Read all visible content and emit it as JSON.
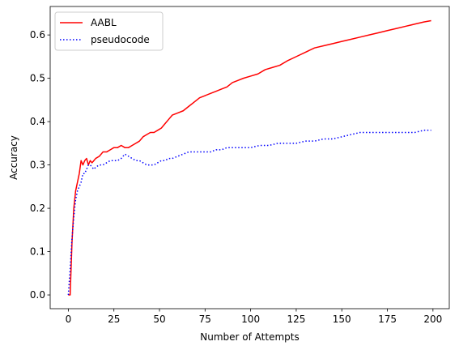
{
  "chart_data": {
    "type": "line",
    "title": "",
    "xlabel": "Number of Attempts",
    "ylabel": "Accuracy",
    "xlim": [
      -9.95,
      208.95
    ],
    "ylim": [
      -0.0317,
      0.6657
    ],
    "xticks": [
      0,
      25,
      50,
      75,
      100,
      125,
      150,
      175,
      200
    ],
    "yticks": [
      0.0,
      0.1,
      0.2,
      0.3,
      0.4,
      0.5,
      0.6
    ],
    "xtick_labels": [
      "0",
      "25",
      "50",
      "75",
      "100",
      "125",
      "150",
      "175",
      "200"
    ],
    "ytick_labels": [
      "0.0",
      "0.1",
      "0.2",
      "0.3",
      "0.4",
      "0.5",
      "0.6"
    ],
    "grid": false,
    "legend": "top-left",
    "series": [
      {
        "name": "AABL",
        "color": "#ff0000",
        "style": "solid",
        "x": [
          0,
          1,
          2,
          3,
          4,
          5,
          6,
          7,
          8,
          9,
          10,
          11,
          12,
          13,
          14,
          15,
          17,
          19,
          21,
          23,
          25,
          27,
          29,
          31,
          33,
          35,
          37,
          39,
          41,
          43,
          45,
          47,
          49,
          51,
          53,
          55,
          57,
          60,
          63,
          66,
          69,
          72,
          75,
          78,
          81,
          84,
          87,
          90,
          93,
          96,
          100,
          104,
          108,
          112,
          116,
          120,
          125,
          130,
          135,
          140,
          145,
          150,
          155,
          160,
          165,
          170,
          175,
          180,
          185,
          190,
          195,
          199
        ],
        "y": [
          0.0,
          0.0,
          0.12,
          0.2,
          0.24,
          0.26,
          0.28,
          0.31,
          0.3,
          0.31,
          0.315,
          0.3,
          0.31,
          0.305,
          0.31,
          0.315,
          0.32,
          0.33,
          0.33,
          0.335,
          0.34,
          0.34,
          0.345,
          0.34,
          0.34,
          0.345,
          0.35,
          0.355,
          0.365,
          0.37,
          0.375,
          0.375,
          0.38,
          0.385,
          0.395,
          0.405,
          0.415,
          0.42,
          0.425,
          0.435,
          0.445,
          0.455,
          0.46,
          0.465,
          0.47,
          0.475,
          0.48,
          0.49,
          0.495,
          0.5,
          0.505,
          0.51,
          0.52,
          0.525,
          0.53,
          0.54,
          0.55,
          0.56,
          0.57,
          0.575,
          0.58,
          0.585,
          0.59,
          0.595,
          0.6,
          0.605,
          0.61,
          0.615,
          0.62,
          0.625,
          0.63,
          0.633
        ]
      },
      {
        "name": "pseudocode",
        "color": "#0000ff",
        "style": "dotted",
        "x": [
          0,
          1,
          2,
          3,
          4,
          5,
          6,
          7,
          8,
          9,
          10,
          11,
          12,
          13,
          14,
          15,
          17,
          19,
          21,
          23,
          25,
          27,
          29,
          31,
          33,
          35,
          37,
          39,
          41,
          43,
          45,
          47,
          49,
          51,
          53,
          55,
          57,
          60,
          63,
          66,
          69,
          72,
          75,
          78,
          81,
          84,
          87,
          90,
          95,
          100,
          105,
          110,
          115,
          120,
          125,
          130,
          135,
          140,
          145,
          150,
          155,
          160,
          165,
          170,
          175,
          180,
          185,
          190,
          195,
          199
        ],
        "y": [
          0.0,
          0.06,
          0.13,
          0.18,
          0.22,
          0.24,
          0.25,
          0.26,
          0.28,
          0.28,
          0.29,
          0.3,
          0.3,
          0.295,
          0.29,
          0.295,
          0.3,
          0.3,
          0.305,
          0.31,
          0.31,
          0.31,
          0.315,
          0.325,
          0.32,
          0.315,
          0.31,
          0.31,
          0.305,
          0.3,
          0.3,
          0.3,
          0.305,
          0.31,
          0.31,
          0.315,
          0.315,
          0.32,
          0.325,
          0.33,
          0.33,
          0.33,
          0.33,
          0.33,
          0.335,
          0.335,
          0.34,
          0.34,
          0.34,
          0.34,
          0.345,
          0.345,
          0.35,
          0.35,
          0.35,
          0.355,
          0.355,
          0.36,
          0.36,
          0.365,
          0.37,
          0.375,
          0.375,
          0.375,
          0.375,
          0.375,
          0.375,
          0.375,
          0.38,
          0.38
        ]
      }
    ]
  }
}
